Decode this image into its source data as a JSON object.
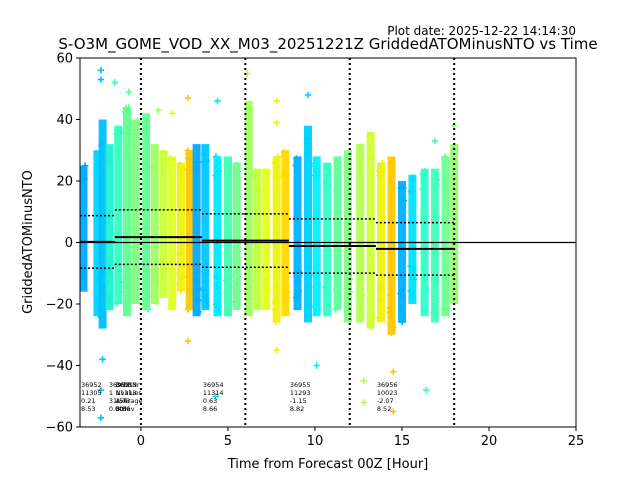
{
  "chart_data": {
    "type": "scatter",
    "title": "S-O3M_GOME_VOD_XX_M03_20251221Z GriddedATOMinusNTO vs Time",
    "plot_date": "Plot date: 2025-12-22 14:14:30",
    "xlabel": "Time from Forecast 00Z [Hour]",
    "ylabel": "GriddedATOMinusNTO",
    "xlim": [
      -3.5,
      25
    ],
    "ylim": [
      -60,
      60
    ],
    "xticks": [
      0,
      5,
      10,
      15,
      20,
      25
    ],
    "yticks": [
      -60,
      -40,
      -20,
      0,
      20,
      40,
      60
    ],
    "zero_line": 0,
    "vlines": [
      0,
      6,
      12,
      18
    ],
    "columns": [
      {
        "x": -3.3,
        "low": -16,
        "high": 25,
        "color": "#00aaff"
      },
      {
        "x": -2.5,
        "low": -24,
        "high": 30,
        "color": "#00d4ff"
      },
      {
        "x": -2.2,
        "low": -28,
        "high": 40,
        "color": "#00c0ff"
      },
      {
        "x": -1.8,
        "low": -22,
        "high": 32,
        "color": "#20f0d0"
      },
      {
        "x": -1.3,
        "low": -20,
        "high": 38,
        "color": "#30ffc0"
      },
      {
        "x": -0.8,
        "low": -24,
        "high": 44,
        "color": "#60ff90"
      },
      {
        "x": -0.3,
        "low": -20,
        "high": 40,
        "color": "#80ff80"
      },
      {
        "x": 0.3,
        "low": -22,
        "high": 42,
        "color": "#60ff90"
      },
      {
        "x": 0.8,
        "low": -20,
        "high": 32,
        "color": "#a0ff60"
      },
      {
        "x": 1.3,
        "low": -18,
        "high": 30,
        "color": "#c8ff38"
      },
      {
        "x": 1.8,
        "low": -22,
        "high": 28,
        "color": "#e0ff20"
      },
      {
        "x": 2.3,
        "low": -16,
        "high": 26,
        "color": "#f0f010"
      },
      {
        "x": 2.8,
        "low": -22,
        "high": 30,
        "color": "#ffc800"
      },
      {
        "x": 3.2,
        "low": -24,
        "high": 32,
        "color": "#00aaff"
      },
      {
        "x": 3.7,
        "low": -22,
        "high": 32,
        "color": "#00c8ff"
      },
      {
        "x": 4.4,
        "low": -24,
        "high": 28,
        "color": "#00e8ff"
      },
      {
        "x": 5.0,
        "low": -24,
        "high": 28,
        "color": "#40ffb0"
      },
      {
        "x": 5.5,
        "low": -22,
        "high": 26,
        "color": "#70ff90"
      },
      {
        "x": 6.2,
        "low": -24,
        "high": 46,
        "color": "#a0ff60"
      },
      {
        "x": 6.7,
        "low": -22,
        "high": 24,
        "color": "#c0ff40"
      },
      {
        "x": 7.2,
        "low": -22,
        "high": 24,
        "color": "#e0ff20"
      },
      {
        "x": 7.8,
        "low": -26,
        "high": 28,
        "color": "#f0f010"
      },
      {
        "x": 8.3,
        "low": -24,
        "high": 30,
        "color": "#ffd800"
      },
      {
        "x": 9.0,
        "low": -22,
        "high": 28,
        "color": "#00b4ff"
      },
      {
        "x": 9.6,
        "low": -26,
        "high": 38,
        "color": "#00d0ff"
      },
      {
        "x": 10.1,
        "low": -24,
        "high": 28,
        "color": "#00f0ff"
      },
      {
        "x": 10.7,
        "low": -24,
        "high": 26,
        "color": "#30ffc8"
      },
      {
        "x": 11.3,
        "low": -22,
        "high": 28,
        "color": "#60ff98"
      },
      {
        "x": 11.9,
        "low": -26,
        "high": 30,
        "color": "#80ff80"
      },
      {
        "x": 12.6,
        "low": -26,
        "high": 32,
        "color": "#b0ff50"
      },
      {
        "x": 13.2,
        "low": -28,
        "high": 36,
        "color": "#d0ff30"
      },
      {
        "x": 13.8,
        "low": -26,
        "high": 26,
        "color": "#f0f010"
      },
      {
        "x": 14.4,
        "low": -30,
        "high": 28,
        "color": "#ffc800"
      },
      {
        "x": 15.0,
        "low": -26,
        "high": 20,
        "color": "#00b0ff"
      },
      {
        "x": 15.6,
        "low": -20,
        "high": 22,
        "color": "#00e0ff"
      },
      {
        "x": 16.3,
        "low": -24,
        "high": 24,
        "color": "#30ffc8"
      },
      {
        "x": 16.9,
        "low": -26,
        "high": 24,
        "color": "#40ffb8"
      },
      {
        "x": 17.5,
        "low": -24,
        "high": 28,
        "color": "#70ff90"
      },
      {
        "x": 18.0,
        "low": -20,
        "high": 32,
        "color": "#90ff70"
      }
    ],
    "outliers": [
      {
        "x": -2.3,
        "y": 56,
        "color": "#00c0ff"
      },
      {
        "x": -2.3,
        "y": 53,
        "color": "#00c0ff"
      },
      {
        "x": -1.5,
        "y": 52,
        "color": "#30ffc0"
      },
      {
        "x": -0.7,
        "y": 49,
        "color": "#60ff90"
      },
      {
        "x": 1.0,
        "y": 43,
        "color": "#a0ff60"
      },
      {
        "x": 1.8,
        "y": 42,
        "color": "#e0ff20"
      },
      {
        "x": 2.7,
        "y": 47,
        "color": "#ffc800"
      },
      {
        "x": 4.4,
        "y": 46,
        "color": "#00e8ff"
      },
      {
        "x": 6.1,
        "y": 55,
        "color": "#a0ff60"
      },
      {
        "x": 7.8,
        "y": 46,
        "color": "#f0f010"
      },
      {
        "x": 7.8,
        "y": 39,
        "color": "#f0f010"
      },
      {
        "x": 9.6,
        "y": 48,
        "color": "#00d0ff"
      },
      {
        "x": 16.9,
        "y": 33,
        "color": "#40ffb8"
      },
      {
        "x": 18.0,
        "y": 38,
        "color": "#90ff70"
      },
      {
        "x": -2.3,
        "y": -48,
        "color": "#00c0ff"
      },
      {
        "x": -2.3,
        "y": -57,
        "color": "#00c0ff"
      },
      {
        "x": -2.2,
        "y": -38,
        "color": "#00c0ff"
      },
      {
        "x": 2.7,
        "y": -32,
        "color": "#ffc800"
      },
      {
        "x": 4.3,
        "y": -50,
        "color": "#00e8ff"
      },
      {
        "x": 7.8,
        "y": -35,
        "color": "#f0f010"
      },
      {
        "x": 10.1,
        "y": -40,
        "color": "#00f0ff"
      },
      {
        "x": 12.8,
        "y": -52,
        "color": "#b0ff50"
      },
      {
        "x": 12.8,
        "y": -45,
        "color": "#b0ff50"
      },
      {
        "x": 14.5,
        "y": -55,
        "color": "#ffc800"
      },
      {
        "x": 14.5,
        "y": -42,
        "color": "#ffc800"
      },
      {
        "x": 16.4,
        "y": -48,
        "color": "#30ffc8"
      }
    ],
    "mean_segments": [
      {
        "x0": -3.5,
        "x1": -1.5,
        "y": 0.21
      },
      {
        "x0": -1.5,
        "x1": 3.5,
        "y": 1.73
      },
      {
        "x0": 3.5,
        "x1": 8.5,
        "y": 0.63
      },
      {
        "x0": 8.5,
        "x1": 13.5,
        "y": -1.15
      },
      {
        "x0": 13.5,
        "x1": 18.0,
        "y": -2.07
      }
    ],
    "std_segments": [
      {
        "x0": -3.5,
        "x1": -1.5,
        "mean": 0.21,
        "std": 8.53
      },
      {
        "x0": -1.5,
        "x1": 3.5,
        "mean": 1.73,
        "std": 8.86
      },
      {
        "x0": 3.5,
        "x1": 8.5,
        "mean": 0.63,
        "std": 8.66
      },
      {
        "x0": 8.5,
        "x1": 13.5,
        "mean": -1.15,
        "std": 8.82
      },
      {
        "x0": 13.5,
        "x1": 18.0,
        "mean": -2.07,
        "std": 8.52
      }
    ],
    "stat_blocks": [
      {
        "x": -3.5,
        "lines": [
          "36952",
          "11305",
          "0.21",
          "8.53"
        ]
      },
      {
        "x": -1.9,
        "lines": [
          "36953",
          "1",
          "31.56",
          "0.00"
        ]
      },
      {
        "x": -1.5,
        "lines": [
          "OrbitNr",
          "Nvalues",
          "Average",
          "Stdev"
        ]
      },
      {
        "x": -1.5,
        "lines": [
          "36953",
          "11313",
          "1.73",
          "8.86"
        ]
      },
      {
        "x": 3.5,
        "lines": [
          "36954",
          "11314",
          "0.63",
          "8.66"
        ]
      },
      {
        "x": 8.5,
        "lines": [
          "36955",
          "11293",
          "-1.15",
          "8.82"
        ]
      },
      {
        "x": 13.5,
        "lines": [
          "36956",
          "10023",
          "-2.07",
          "8.52"
        ]
      }
    ]
  }
}
